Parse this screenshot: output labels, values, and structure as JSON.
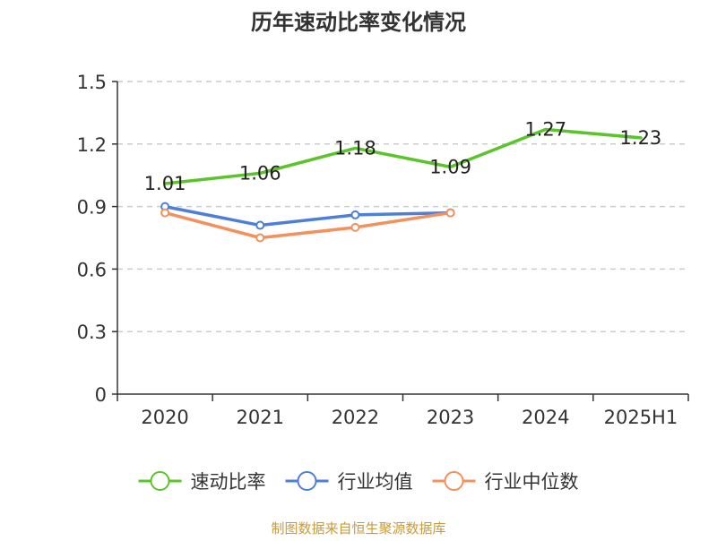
{
  "chart_data": {
    "type": "line",
    "title": "历年速动比率变化情况",
    "categories": [
      "2020",
      "2021",
      "2022",
      "2023",
      "2024",
      "2025H1"
    ],
    "ylim": [
      0,
      1.5
    ],
    "yticks": [
      "0",
      "0.3",
      "0.6",
      "0.9",
      "1.2",
      "1.5"
    ],
    "ytick_values": [
      0,
      0.3,
      0.6,
      0.9,
      1.2,
      1.5
    ],
    "grid": true,
    "legend_position": "bottom",
    "series": [
      {
        "name": "速动比率",
        "color": "#5cc42b",
        "values": [
          1.01,
          1.06,
          1.18,
          1.09,
          1.27,
          1.23
        ],
        "labels": [
          "1.01",
          "1.06",
          "1.18",
          "1.09",
          "1.27",
          "1.23"
        ],
        "show_labels": true,
        "show_markers": false
      },
      {
        "name": "行业均值",
        "color": "#4e7fd8",
        "values": [
          0.9,
          0.81,
          0.86,
          0.87,
          null,
          null
        ],
        "show_labels": false,
        "show_markers": true
      },
      {
        "name": "行业中位数",
        "color": "#f4905c",
        "values": [
          0.87,
          0.75,
          0.8,
          0.87,
          null,
          null
        ],
        "show_labels": false,
        "show_markers": true
      }
    ]
  },
  "footer": {
    "source_text": "制图数据来自恒生聚源数据库"
  },
  "colors": {
    "axis": "#333333",
    "grid": "#cccccc",
    "title": "#333333",
    "footer": "#c89a3a"
  }
}
